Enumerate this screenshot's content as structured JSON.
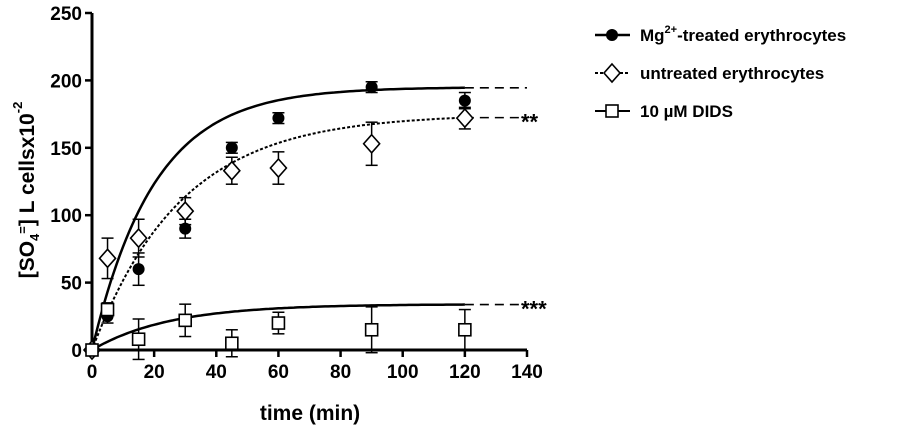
{
  "chart_data": {
    "type": "scatter",
    "xlabel": "time (min)",
    "ylabel": {
      "part1": "[SO",
      "sub": "4",
      "sup": "=",
      "part2": "] L cellsx10",
      "exp": "-2"
    },
    "xlim": [
      0,
      140
    ],
    "ylim": [
      0,
      250
    ],
    "x_ticks": [
      0,
      20,
      40,
      60,
      80,
      100,
      120,
      140
    ],
    "y_ticks": [
      0,
      50,
      100,
      150,
      200,
      250
    ],
    "grid": false,
    "legend_position": "top-right",
    "series": [
      {
        "key": "mg",
        "name": "Mg",
        "name_sup": "2+",
        "name_rest": "-treated erythrocytes",
        "marker": "filled-circle",
        "line": "solid",
        "points": [
          {
            "x": 0,
            "y": 0,
            "err": 0
          },
          {
            "x": 5,
            "y": 25,
            "err": 5
          },
          {
            "x": 15,
            "y": 60,
            "err": 12
          },
          {
            "x": 30,
            "y": 90,
            "err": 7
          },
          {
            "x": 45,
            "y": 150,
            "err": 4
          },
          {
            "x": 60,
            "y": 172,
            "err": 4
          },
          {
            "x": 90,
            "y": 195,
            "err": 4
          },
          {
            "x": 120,
            "y": 185,
            "err": 6
          }
        ],
        "plateau": 195,
        "rate": 0.05
      },
      {
        "key": "untreated",
        "name": "untreated erythrocytes",
        "marker": "open-diamond",
        "line": "dashed",
        "points": [
          {
            "x": 0,
            "y": 0,
            "err": 0
          },
          {
            "x": 5,
            "y": 68,
            "err": 15
          },
          {
            "x": 15,
            "y": 83,
            "err": 14
          },
          {
            "x": 30,
            "y": 103,
            "err": 10
          },
          {
            "x": 45,
            "y": 133,
            "err": 10
          },
          {
            "x": 60,
            "y": 135,
            "err": 12
          },
          {
            "x": 90,
            "y": 153,
            "err": 16
          },
          {
            "x": 120,
            "y": 172,
            "err": 8
          }
        ],
        "plateau": 175,
        "rate": 0.035,
        "significance": "**"
      },
      {
        "key": "dids",
        "name": "10 µM DIDS",
        "marker": "open-square",
        "line": "solid",
        "points": [
          {
            "x": 0,
            "y": 0,
            "err": 0
          },
          {
            "x": 5,
            "y": 30,
            "err": 5
          },
          {
            "x": 15,
            "y": 8,
            "err": 15
          },
          {
            "x": 30,
            "y": 22,
            "err": 12
          },
          {
            "x": 45,
            "y": 5,
            "err": 10
          },
          {
            "x": 60,
            "y": 20,
            "err": 8
          },
          {
            "x": 90,
            "y": 15,
            "err": 17
          },
          {
            "x": 120,
            "y": 15,
            "err": 15
          }
        ],
        "plateau": 34,
        "rate": 0.04,
        "significance": "***"
      }
    ]
  }
}
